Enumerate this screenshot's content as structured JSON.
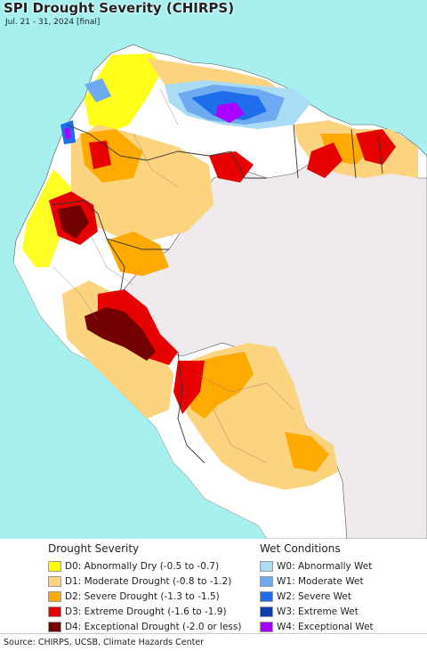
{
  "header": {
    "title": "SPI Drought Severity (CHIRPS)",
    "subtitle": "Jul. 21 - 31, 2024 [final]"
  },
  "legend": {
    "drought": {
      "heading": "Drought Severity",
      "items": [
        {
          "label": "D0: Abnormally Dry (-0.5 to -0.7)",
          "color": "#ffff00"
        },
        {
          "label": "D1: Moderate Drought (-0.8 to -1.2)",
          "color": "#fcd37f"
        },
        {
          "label": "D2: Severe Drought (-1.3 to -1.5)",
          "color": "#ffaa00"
        },
        {
          "label": "D3: Extreme Drought (-1.6 to -1.9)",
          "color": "#e60000"
        },
        {
          "label": "D4: Exceptional Drought (-2.0 or less)",
          "color": "#730000"
        }
      ]
    },
    "wet": {
      "heading": "Wet Conditions",
      "items": [
        {
          "label": "W0: Abnormally Wet",
          "color": "#aadcf5"
        },
        {
          "label": "W1: Moderate Wet",
          "color": "#6eaaf0"
        },
        {
          "label": "W2: Severe Wet",
          "color": "#1e6eeb"
        },
        {
          "label": "W3: Extreme Wet",
          "color": "#0a3cb4"
        },
        {
          "label": "W4: Exceptional Wet",
          "color": "#aa00ff"
        }
      ]
    }
  },
  "colors": {
    "ocean": "#a8f0f0",
    "no_data": "#eeeaee",
    "land_white": "#ffffff"
  },
  "footer": {
    "source": "Source: CHIRPS, UCSB, Climate Hazards Center"
  }
}
